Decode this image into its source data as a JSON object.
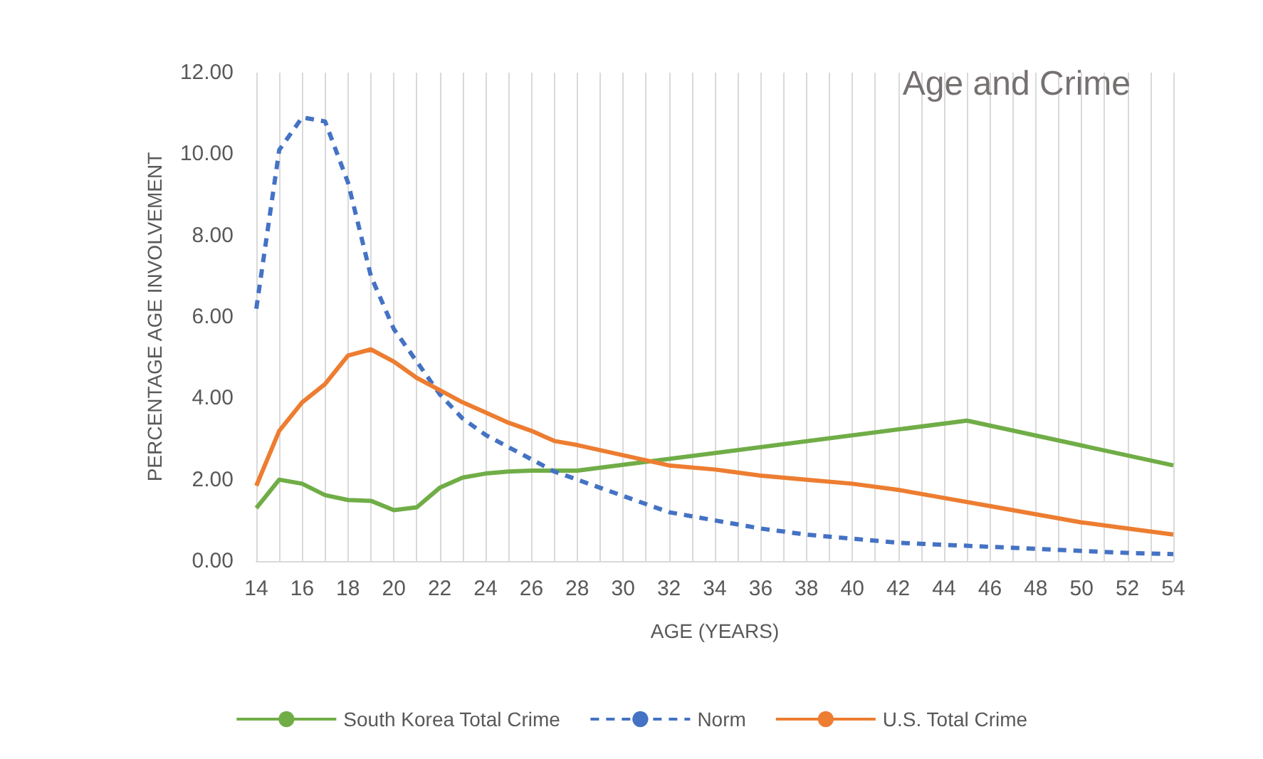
{
  "chart_data": {
    "type": "line",
    "title": "Age and Crime",
    "xlabel": "AGE (YEARS)",
    "ylabel": "PERCENTAGE AGE INVOLVEMENT",
    "xlim": [
      14,
      54
    ],
    "xticks": [
      14,
      {
        "value": 15,
        "label": null
      },
      16,
      {
        "value": 17,
        "label": null
      },
      18,
      {
        "value": 19,
        "label": null
      },
      20,
      {
        "value": 21,
        "label": null
      },
      22,
      {
        "value": 23,
        "label": null
      },
      24,
      {
        "value": 25,
        "label": null
      },
      26,
      {
        "value": 27,
        "label": null
      },
      28,
      {
        "value": 29,
        "label": null
      },
      30,
      {
        "value": 31,
        "label": null
      },
      32,
      {
        "value": 33,
        "label": null
      },
      34,
      {
        "value": 35,
        "label": null
      },
      36,
      {
        "value": 37,
        "label": null
      },
      38,
      {
        "value": 39,
        "label": null
      },
      40,
      {
        "value": 41,
        "label": null
      },
      42,
      {
        "value": 43,
        "label": null
      },
      44,
      {
        "value": 45,
        "label": null
      },
      46,
      {
        "value": 47,
        "label": null
      },
      48,
      {
        "value": 49,
        "label": null
      },
      50,
      {
        "value": 51,
        "label": null
      },
      52,
      {
        "value": 53,
        "label": null
      },
      54
    ],
    "ylim": [
      0,
      12
    ],
    "yticks": [
      {
        "value": 0,
        "label": "0.00"
      },
      {
        "value": 2,
        "label": "2.00"
      },
      {
        "value": 4,
        "label": "4.00"
      },
      {
        "value": 6,
        "label": "6.00"
      },
      {
        "value": 8,
        "label": "8.00"
      },
      {
        "value": 10,
        "label": "10.00"
      },
      {
        "value": 12,
        "label": "12.00"
      }
    ],
    "grid": "x",
    "legend": "bottom",
    "marker": "none",
    "series": [
      {
        "name": "South Korea Total Crime",
        "color": "#70ad47",
        "line_style": "solid",
        "x": [
          14,
          15,
          16,
          17,
          18,
          19,
          20,
          21,
          22,
          23,
          24,
          25,
          26,
          27,
          28,
          45,
          54
        ],
        "values": [
          1.3,
          2.0,
          1.9,
          1.62,
          1.5,
          1.48,
          1.25,
          1.32,
          1.8,
          2.05,
          2.15,
          2.2,
          2.22,
          2.22,
          2.22,
          3.45,
          2.35
        ]
      },
      {
        "name": "Norm",
        "color": "#4472c4",
        "line_style": "dashed",
        "x": [
          14,
          15,
          16,
          17,
          18,
          19,
          20,
          21,
          22,
          23,
          24,
          25,
          26,
          27,
          28,
          29,
          30,
          31,
          32,
          34,
          36,
          38,
          40,
          42,
          44,
          46,
          48,
          50,
          52,
          54
        ],
        "values": [
          6.2,
          10.1,
          10.9,
          10.8,
          9.3,
          7.0,
          5.7,
          4.9,
          4.1,
          3.5,
          3.1,
          2.8,
          2.5,
          2.2,
          2.0,
          1.8,
          1.6,
          1.4,
          1.2,
          1.0,
          0.8,
          0.65,
          0.55,
          0.45,
          0.4,
          0.35,
          0.3,
          0.25,
          0.2,
          0.17
        ]
      },
      {
        "name": "U.S. Total Crime",
        "color": "#ed7d31",
        "line_style": "solid",
        "x": [
          14,
          15,
          16,
          17,
          18,
          19,
          20,
          21,
          22,
          23,
          24,
          25,
          26,
          27,
          28,
          30,
          32,
          34,
          36,
          38,
          40,
          42,
          44,
          46,
          48,
          50,
          52,
          54
        ],
        "values": [
          1.85,
          3.2,
          3.9,
          4.35,
          5.05,
          5.2,
          4.9,
          4.5,
          4.2,
          3.9,
          3.65,
          3.4,
          3.2,
          2.95,
          2.85,
          2.6,
          2.35,
          2.25,
          2.1,
          2.0,
          1.9,
          1.75,
          1.55,
          1.35,
          1.15,
          0.95,
          0.8,
          0.65
        ]
      }
    ]
  }
}
